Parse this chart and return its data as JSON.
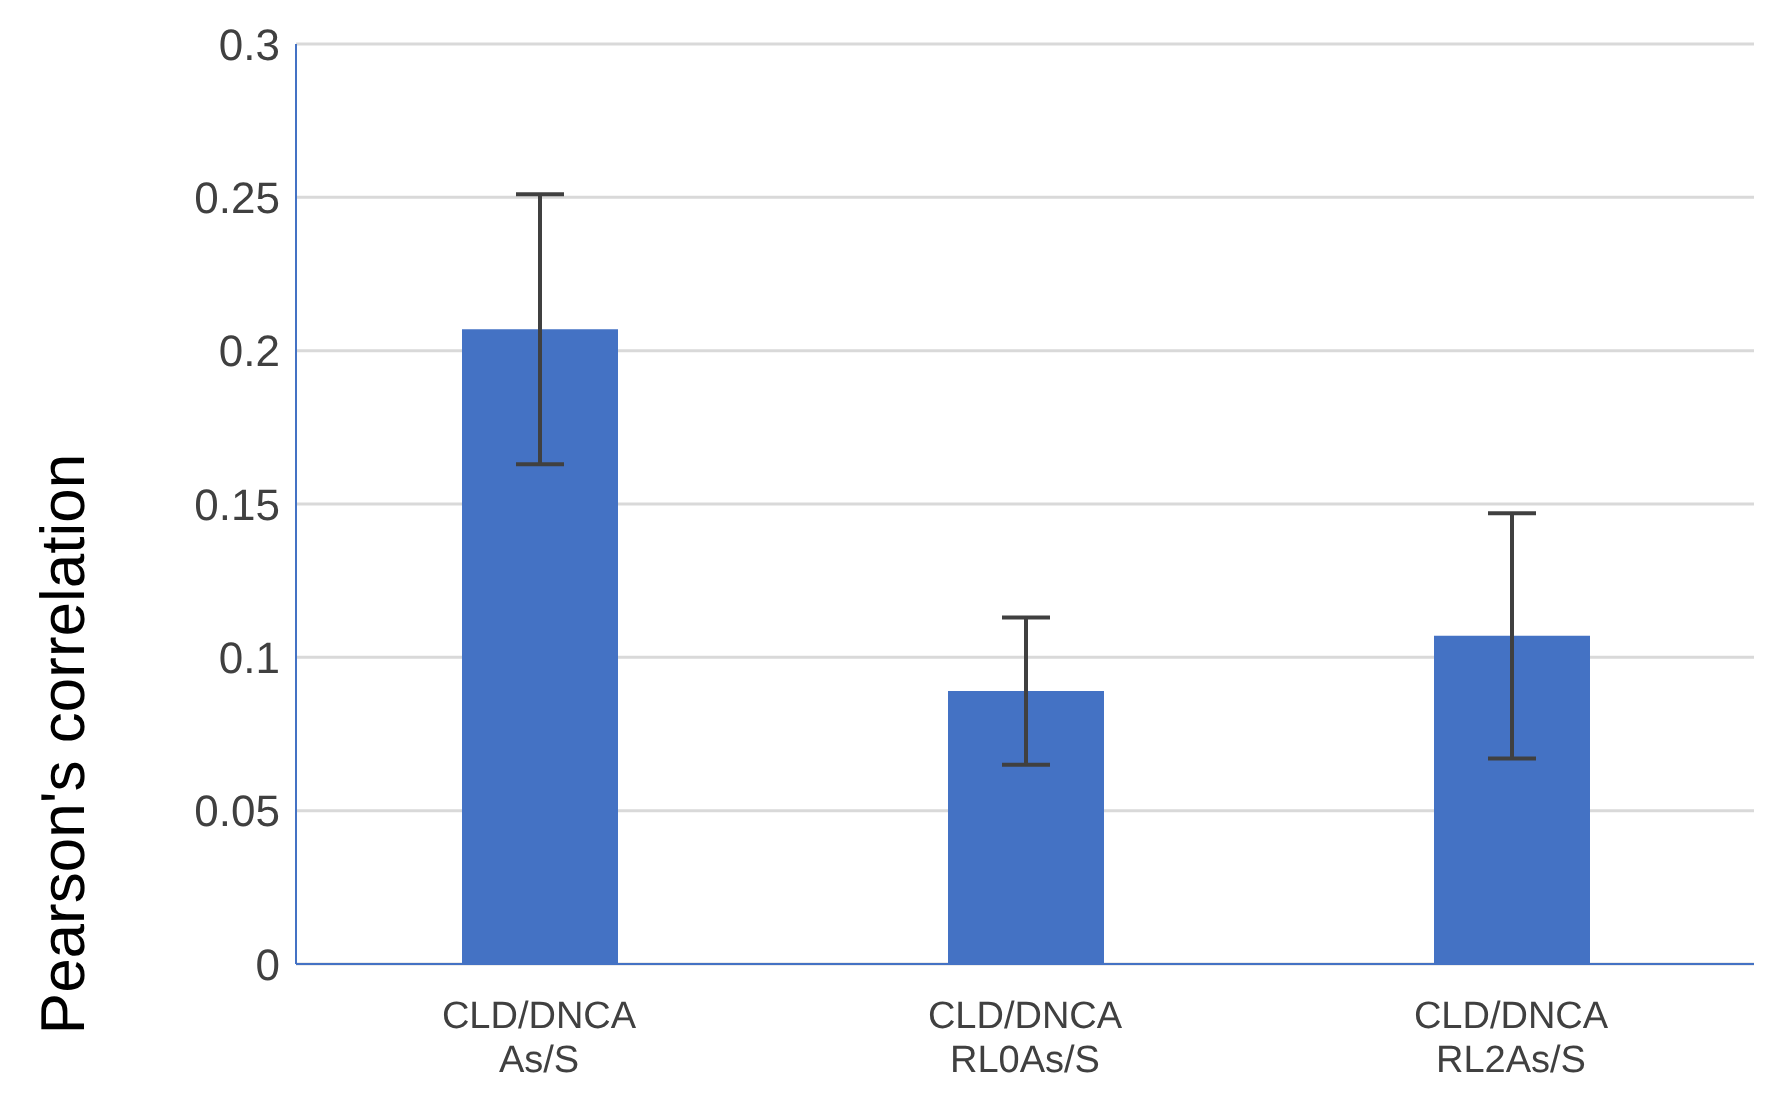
{
  "chart_data": {
    "type": "bar",
    "ylabel": "Pearson's correlation",
    "categories": [
      "CLD/DNCA\nAs/S",
      "CLD/DNCA\nRL0As/S",
      "CLD/DNCA\nRL2As/S"
    ],
    "values": [
      0.207,
      0.089,
      0.107
    ],
    "errors": [
      0.044,
      0.024,
      0.04
    ],
    "color": "#4472c4",
    "ylim": [
      0,
      0.3
    ],
    "yticks": [
      0,
      0.05,
      0.1,
      0.15,
      0.2,
      0.25,
      0.3
    ],
    "grid": "y"
  }
}
